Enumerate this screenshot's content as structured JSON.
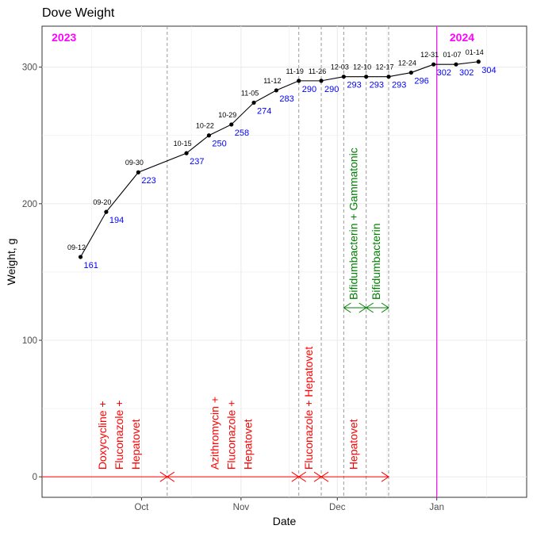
{
  "chart_data": {
    "type": "line",
    "title": "Dove Weight",
    "xlabel": "Date",
    "ylabel": "Weight, g",
    "xlim": [
      "2023-08-31",
      "2024-01-29"
    ],
    "ylim": [
      -15,
      330
    ],
    "yticks": [
      0,
      100,
      200,
      300
    ],
    "xticks": [
      {
        "date": "2023-10-01",
        "label": "Oct"
      },
      {
        "date": "2023-11-01",
        "label": "Nov"
      },
      {
        "date": "2023-12-01",
        "label": "Dec"
      },
      {
        "date": "2024-01-01",
        "label": "Jan"
      }
    ],
    "grid": true,
    "points": [
      {
        "date": "2023-09-12",
        "label": "09-12",
        "weight": 161
      },
      {
        "date": "2023-09-20",
        "label": "09-20",
        "weight": 194
      },
      {
        "date": "2023-09-30",
        "label": "09-30",
        "weight": 223
      },
      {
        "date": "2023-10-15",
        "label": "10-15",
        "weight": 237
      },
      {
        "date": "2023-10-22",
        "label": "10-22",
        "weight": 250
      },
      {
        "date": "2023-10-29",
        "label": "10-29",
        "weight": 258
      },
      {
        "date": "2023-11-05",
        "label": "11-05",
        "weight": 274
      },
      {
        "date": "2023-11-12",
        "label": "11-12",
        "weight": 283
      },
      {
        "date": "2023-11-19",
        "label": "11-19",
        "weight": 290
      },
      {
        "date": "2023-11-26",
        "label": "11-26",
        "weight": 290
      },
      {
        "date": "2023-12-03",
        "label": "12-03",
        "weight": 293
      },
      {
        "date": "2023-12-10",
        "label": "12-10",
        "weight": 293
      },
      {
        "date": "2023-12-17",
        "label": "12-17",
        "weight": 293
      },
      {
        "date": "2023-12-24",
        "label": "12-24",
        "weight": 296
      },
      {
        "date": "2023-12-31",
        "label": "12-31",
        "weight": 302
      },
      {
        "date": "2024-01-07",
        "label": "01-07",
        "weight": 302
      },
      {
        "date": "2024-01-14",
        "label": "01-14",
        "weight": 304
      }
    ],
    "year_markers": [
      {
        "label": "2023",
        "date": "2023-09-03"
      },
      {
        "label": "2024",
        "date": "2024-01-05",
        "line_date": "2024-01-01"
      }
    ],
    "treatment_boundaries": [
      "2023-10-09",
      "2023-11-19",
      "2023-11-26",
      "2023-12-03",
      "2023-12-10",
      "2023-12-17"
    ],
    "treatments_red": [
      {
        "lines": [
          "Doxycycline +",
          "Fluconazole +",
          "Hepatovet"
        ],
        "start": "2023-08-31",
        "end": "2023-10-09",
        "text_center": "2023-09-24"
      },
      {
        "lines": [
          "Azithromycin +",
          "Fluconazole +",
          "Hepatovet"
        ],
        "start": "2023-10-09",
        "end": "2023-11-19",
        "text_center": "2023-10-29"
      },
      {
        "lines": [
          "Fluconazole + Hepatovet"
        ],
        "start": "2023-11-19",
        "end": "2023-11-26",
        "text_center": "2023-11-22"
      },
      {
        "lines": [
          "Hepatovet"
        ],
        "start": "2023-11-26",
        "end": "2023-12-17",
        "text_center": "2023-12-06"
      }
    ],
    "treatments_green": [
      {
        "lines": [
          "Bifidumbacterin + Gammatonic"
        ],
        "start": "2023-12-03",
        "end": "2023-12-10",
        "text_center": "2023-12-06"
      },
      {
        "lines": [
          "Bifidumbacterin"
        ],
        "start": "2023-12-10",
        "end": "2023-12-17",
        "text_center": "2023-12-13"
      }
    ],
    "colors": {
      "line": "#000000",
      "value_labels": "#0000ff",
      "year": "#ff00ff",
      "red_treatment": "#ff0000",
      "green_treatment": "#008000",
      "boundary": "#999999",
      "grid": "#ebebeb"
    }
  }
}
